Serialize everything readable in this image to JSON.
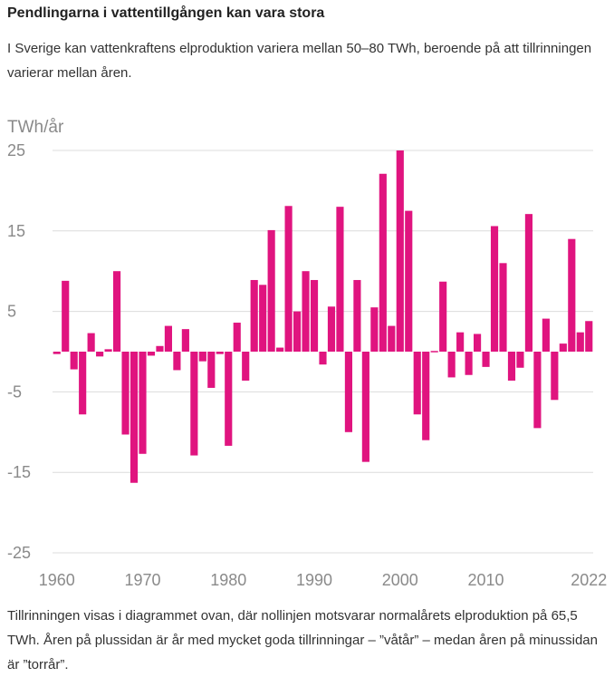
{
  "title": "Pendlingarna i vattentillgången kan vara stora",
  "subtitle": "I Sverige kan vattenkraftens elproduktion variera mellan 50–80 TWh, beroende på att tillrinningen varierar mellan åren.",
  "note": "Tillrinningen visas i diagrammet ovan, där nollinjen motsvarar normalårets elproduktion på 65,5 TWh. Åren på plussidan är år med mycket goda tillrinningar – ”våtår” – medan åren på minussidan är ”torrår”.",
  "chart_data": {
    "type": "bar",
    "ylabel": "TWh/år",
    "xlabel": "",
    "ylim": [
      -25,
      25
    ],
    "yticks": [
      25,
      15,
      5,
      -5,
      -15,
      -25
    ],
    "ytick_labels": [
      "25",
      "15",
      "5",
      "-5",
      "-15",
      "-25"
    ],
    "xticks": [
      1960,
      1970,
      1980,
      1990,
      2000,
      2010,
      2022
    ],
    "xtick_labels": [
      "1960",
      "1970",
      "1980",
      "1990",
      "2000",
      "2010",
      "2022"
    ],
    "bar_color": "#e0147f",
    "series": [
      {
        "name": "Tillrinning",
        "years": [
          1960,
          1961,
          1962,
          1963,
          1964,
          1965,
          1966,
          1967,
          1968,
          1969,
          1970,
          1971,
          1972,
          1973,
          1974,
          1975,
          1976,
          1977,
          1978,
          1979,
          1980,
          1981,
          1982,
          1983,
          1984,
          1985,
          1986,
          1987,
          1988,
          1989,
          1990,
          1991,
          1992,
          1993,
          1994,
          1995,
          1996,
          1997,
          1998,
          1999,
          2000,
          2001,
          2002,
          2003,
          2004,
          2005,
          2006,
          2007,
          2008,
          2009,
          2010,
          2011,
          2012,
          2013,
          2014,
          2015,
          2016,
          2017,
          2018,
          2019,
          2020,
          2021,
          2022
        ],
        "values": [
          -0.3,
          8.8,
          -2.2,
          -7.8,
          2.3,
          -0.6,
          0.3,
          10.0,
          -10.3,
          -16.3,
          -12.7,
          -0.5,
          0.7,
          3.2,
          -2.3,
          2.8,
          -12.9,
          -1.2,
          -4.5,
          -0.3,
          -11.7,
          3.6,
          -3.6,
          8.9,
          8.3,
          15.1,
          0.5,
          18.1,
          5.0,
          10.0,
          8.9,
          -1.6,
          5.6,
          18.0,
          -10.0,
          8.9,
          -13.7,
          5.5,
          22.1,
          3.2,
          25.0,
          17.5,
          -7.8,
          -11.0,
          0.0,
          8.7,
          -3.2,
          2.4,
          -2.9,
          2.2,
          -1.9,
          15.6,
          11.0,
          -3.6,
          -2.0,
          17.1,
          -9.5,
          4.1,
          -6.0,
          1.0,
          14.0,
          2.4,
          3.8
        ]
      }
    ]
  }
}
